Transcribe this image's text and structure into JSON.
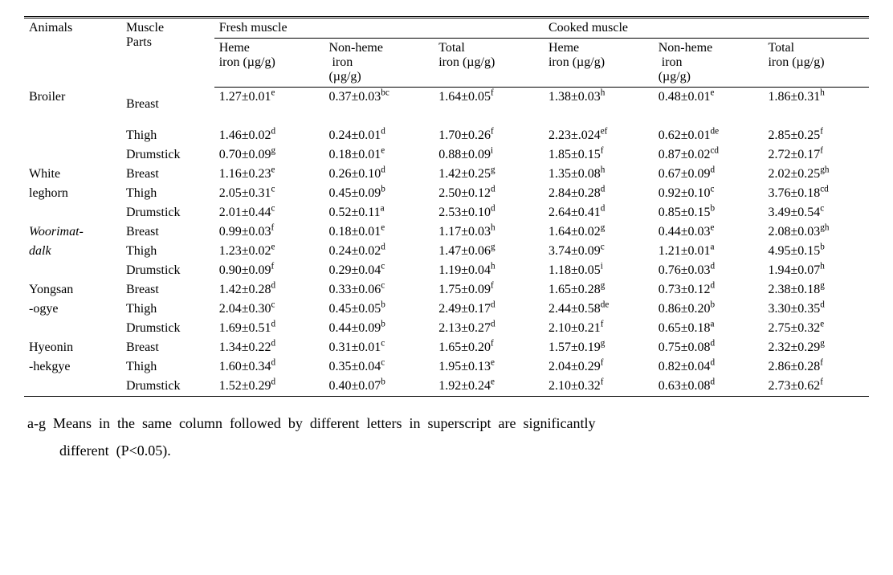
{
  "colors": {
    "background": "#ffffff",
    "text": "#000000",
    "rule": "#000000"
  },
  "typography": {
    "body_font": "Times New Roman",
    "cell_fontsize_pt": 12,
    "footnote_fontsize_pt": 14
  },
  "header": {
    "animals": "Animals",
    "muscle_parts_line1": "Muscle",
    "muscle_parts_line2": "Parts",
    "fresh": "Fresh muscle",
    "cooked": "Cooked muscle",
    "heme_line1": "Heme",
    "heme_line2": "iron (µg/g)",
    "nonheme_line1": "Non-heme",
    "nonheme_line2_indent": " iron",
    "nonheme_line3": "(µg/g)",
    "total_line1": "Total",
    "total_line2": "iron (µg/g)"
  },
  "animals": [
    {
      "name_lines": [
        "Broiler"
      ],
      "italic": false,
      "parts": [
        {
          "part": "Breast",
          "extra_gap": true,
          "fresh": {
            "heme": {
              "v": "1.27±0.01",
              "s": "e"
            },
            "nonheme": {
              "v": "0.37±0.03",
              "s": "bc"
            },
            "total": {
              "v": "1.64±0.05",
              "s": "f"
            }
          },
          "cooked": {
            "heme": {
              "v": "1.38±0.03",
              "s": "h"
            },
            "nonheme": {
              "v": "0.48±0.01",
              "s": "e"
            },
            "total": {
              "v": "1.86±0.31",
              "s": "h"
            }
          }
        },
        {
          "part": "Thigh",
          "fresh": {
            "heme": {
              "v": "1.46±0.02",
              "s": "d"
            },
            "nonheme": {
              "v": "0.24±0.01",
              "s": "d"
            },
            "total": {
              "v": "1.70±0.26",
              "s": "f"
            }
          },
          "cooked": {
            "heme": {
              "v": "2.23±.024",
              "s": "ef"
            },
            "nonheme": {
              "v": "0.62±0.01",
              "s": "de"
            },
            "total": {
              "v": "2.85±0.25",
              "s": "f"
            }
          }
        },
        {
          "part": "Drumstick",
          "fresh": {
            "heme": {
              "v": "0.70±0.09",
              "s": "g"
            },
            "nonheme": {
              "v": "0.18±0.01",
              "s": "e"
            },
            "total": {
              "v": "0.88±0.09",
              "s": "i"
            }
          },
          "cooked": {
            "heme": {
              "v": "1.85±0.15",
              "s": "f"
            },
            "nonheme": {
              "v": "0.87±0.02",
              "s": "cd"
            },
            "total": {
              "v": "2.72±0.17",
              "s": "f"
            }
          }
        }
      ]
    },
    {
      "name_lines": [
        "White",
        "leghorn"
      ],
      "italic": false,
      "parts": [
        {
          "part": "Breast",
          "fresh": {
            "heme": {
              "v": "1.16±0.23",
              "s": "e"
            },
            "nonheme": {
              "v": "0.26±0.10",
              "s": "d"
            },
            "total": {
              "v": "1.42±0.25",
              "s": "g"
            }
          },
          "cooked": {
            "heme": {
              "v": "1.35±0.08",
              "s": "h"
            },
            "nonheme": {
              "v": "0.67±0.09",
              "s": "d"
            },
            "total": {
              "v": "2.02±0.25",
              "s": "gh"
            }
          }
        },
        {
          "part": "Thigh",
          "fresh": {
            "heme": {
              "v": "2.05±0.31",
              "s": "c"
            },
            "nonheme": {
              "v": "0.45±0.09",
              "s": "b"
            },
            "total": {
              "v": "2.50±0.12",
              "s": "d"
            }
          },
          "cooked": {
            "heme": {
              "v": "2.84±0.28",
              "s": "d"
            },
            "nonheme": {
              "v": "0.92±0.10",
              "s": "c"
            },
            "total": {
              "v": "3.76±0.18",
              "s": "cd"
            }
          }
        },
        {
          "part": "Drumstick",
          "fresh": {
            "heme": {
              "v": "2.01±0.44",
              "s": "c"
            },
            "nonheme": {
              "v": "0.52±0.11",
              "s": "a"
            },
            "total": {
              "v": "2.53±0.10",
              "s": "d"
            }
          },
          "cooked": {
            "heme": {
              "v": "2.64±0.41",
              "s": "d"
            },
            "nonheme": {
              "v": "0.85±0.15",
              "s": "b"
            },
            "total": {
              "v": "3.49±0.54",
              "s": "c"
            }
          }
        }
      ]
    },
    {
      "name_lines": [
        "Woorimat-",
        "dalk"
      ],
      "italic": true,
      "parts": [
        {
          "part": "Breast",
          "fresh": {
            "heme": {
              "v": "0.99±0.03",
              "s": "f"
            },
            "nonheme": {
              "v": "0.18±0.01",
              "s": "e"
            },
            "total": {
              "v": "1.17±0.03",
              "s": "h"
            }
          },
          "cooked": {
            "heme": {
              "v": "1.64±0.02",
              "s": "g"
            },
            "nonheme": {
              "v": "0.44±0.03",
              "s": "e"
            },
            "total": {
              "v": "2.08±0.03",
              "s": "gh"
            }
          }
        },
        {
          "part": "Thigh",
          "fresh": {
            "heme": {
              "v": "1.23±0.02",
              "s": "e"
            },
            "nonheme": {
              "v": "0.24±0.02",
              "s": "d"
            },
            "total": {
              "v": "1.47±0.06",
              "s": "g"
            }
          },
          "cooked": {
            "heme": {
              "v": "3.74±0.09",
              "s": "c"
            },
            "nonheme": {
              "v": "1.21±0.01",
              "s": "a"
            },
            "total": {
              "v": "4.95±0.15",
              "s": "b"
            }
          }
        },
        {
          "part": "Drumstick",
          "fresh": {
            "heme": {
              "v": "0.90±0.09",
              "s": "f"
            },
            "nonheme": {
              "v": "0.29±0.04",
              "s": "c"
            },
            "total": {
              "v": "1.19±0.04",
              "s": "h"
            }
          },
          "cooked": {
            "heme": {
              "v": "1.18±0.05",
              "s": "i"
            },
            "nonheme": {
              "v": "0.76±0.03",
              "s": "d"
            },
            "total": {
              "v": "1.94±0.07",
              "s": "h"
            }
          }
        }
      ]
    },
    {
      "name_lines": [
        "Yongsan",
        "-ogye"
      ],
      "italic": false,
      "parts": [
        {
          "part": "Breast",
          "fresh": {
            "heme": {
              "v": "1.42±0.28",
              "s": "d"
            },
            "nonheme": {
              "v": "0.33±0.06",
              "s": "c"
            },
            "total": {
              "v": "1.75±0.09",
              "s": "f"
            }
          },
          "cooked": {
            "heme": {
              "v": "1.65±0.28",
              "s": "g"
            },
            "nonheme": {
              "v": "0.73±0.12",
              "s": "d"
            },
            "total": {
              "v": "2.38±0.18",
              "s": "g"
            }
          }
        },
        {
          "part": "Thigh",
          "fresh": {
            "heme": {
              "v": "2.04±0.30",
              "s": "c"
            },
            "nonheme": {
              "v": "0.45±0.05",
              "s": "b"
            },
            "total": {
              "v": "2.49±0.17",
              "s": "d"
            }
          },
          "cooked": {
            "heme": {
              "v": "2.44±0.58",
              "s": "de"
            },
            "nonheme": {
              "v": "0.86±0.20",
              "s": "b"
            },
            "total": {
              "v": "3.30±0.35",
              "s": "d"
            }
          }
        },
        {
          "part": "Drumstick",
          "fresh": {
            "heme": {
              "v": "1.69±0.51",
              "s": "d"
            },
            "nonheme": {
              "v": "0.44±0.09",
              "s": "b"
            },
            "total": {
              "v": "2.13±0.27",
              "s": "d"
            }
          },
          "cooked": {
            "heme": {
              "v": "2.10±0.21",
              "s": "f"
            },
            "nonheme": {
              "v": "0.65±0.18",
              "s": "a"
            },
            "total": {
              "v": "2.75±0.32",
              "s": "e"
            }
          }
        }
      ]
    },
    {
      "name_lines": [
        "Hyeonin",
        "-hekgye"
      ],
      "italic": false,
      "parts": [
        {
          "part": "Breast",
          "fresh": {
            "heme": {
              "v": "1.34±0.22",
              "s": "d"
            },
            "nonheme": {
              "v": "0.31±0.01",
              "s": "c"
            },
            "total": {
              "v": "1.65±0.20",
              "s": "f"
            }
          },
          "cooked": {
            "heme": {
              "v": "1.57±0.19",
              "s": "g"
            },
            "nonheme": {
              "v": "0.75±0.08",
              "s": "d"
            },
            "total": {
              "v": "2.32±0.29",
              "s": "g"
            }
          }
        },
        {
          "part": "Thigh",
          "fresh": {
            "heme": {
              "v": "1.60±0.34",
              "s": "d"
            },
            "nonheme": {
              "v": "0.35±0.04",
              "s": "c"
            },
            "total": {
              "v": "1.95±0.13",
              "s": "e"
            }
          },
          "cooked": {
            "heme": {
              "v": "2.04±0.29",
              "s": "f"
            },
            "nonheme": {
              "v": "0.82±0.04",
              "s": "d"
            },
            "total": {
              "v": "2.86±0.28",
              "s": "f"
            }
          }
        },
        {
          "part": "Drumstick",
          "fresh": {
            "heme": {
              "v": "1.52±0.29",
              "s": "d"
            },
            "nonheme": {
              "v": "0.40±0.07",
              "s": "b"
            },
            "total": {
              "v": "1.92±0.24",
              "s": "e"
            }
          },
          "cooked": {
            "heme": {
              "v": "2.10±0.32",
              "s": "f"
            },
            "nonheme": {
              "v": "0.63±0.08",
              "s": "d"
            },
            "total": {
              "v": "2.73±0.62",
              "s": "f"
            }
          }
        }
      ]
    }
  ],
  "footnote": {
    "line1": "a-g Means in the same column followed by different letters in superscript are significantly",
    "line2": "different (P<0.05)."
  }
}
